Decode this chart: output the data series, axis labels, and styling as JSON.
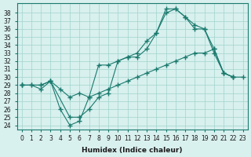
{
  "title": "",
  "xlabel": "Humidex (Indice chaleur)",
  "ylabel": "",
  "xlim": [
    -0.5,
    23.5
  ],
  "ylim": [
    23.5,
    39.2
  ],
  "xticks": [
    0,
    1,
    2,
    3,
    4,
    5,
    6,
    7,
    8,
    9,
    10,
    11,
    12,
    13,
    14,
    15,
    16,
    17,
    18,
    19,
    20,
    21,
    22,
    23
  ],
  "yticks": [
    24,
    25,
    26,
    27,
    28,
    29,
    30,
    31,
    32,
    33,
    34,
    35,
    36,
    37,
    38
  ],
  "line_color": "#1a7a6e",
  "bg_color": "#d8f0ee",
  "grid_color": "#a0d4cc",
  "line1_x": [
    0,
    1,
    2,
    3,
    4,
    5,
    6,
    7,
    8,
    9,
    10,
    11,
    12,
    13,
    14,
    15,
    16,
    17,
    18,
    19,
    20,
    21,
    22
  ],
  "line1_y": [
    29.0,
    29.0,
    28.5,
    29.5,
    26.0,
    24.0,
    24.5,
    27.5,
    31.5,
    31.5,
    32.0,
    32.5,
    33.0,
    34.5,
    35.5,
    38.0,
    38.5,
    37.5,
    36.5,
    36.0,
    33.5,
    30.5,
    30.0
  ],
  "line2_x": [
    0,
    2,
    3,
    5,
    6,
    7,
    8,
    9,
    10,
    11,
    12,
    13,
    14,
    15,
    16,
    17,
    18,
    19,
    20,
    21,
    22
  ],
  "line2_y": [
    29.0,
    29.0,
    29.5,
    25.0,
    25.0,
    26.0,
    27.5,
    28.0,
    32.0,
    32.5,
    32.5,
    33.5,
    35.5,
    38.5,
    38.5,
    37.5,
    36.0,
    36.0,
    33.0,
    30.5,
    30.0
  ],
  "line3_x": [
    0,
    1,
    2,
    3,
    4,
    5,
    6,
    7,
    8,
    9,
    10,
    11,
    12,
    13,
    14,
    15,
    16,
    17,
    18,
    19,
    20,
    21,
    22,
    23
  ],
  "line3_y": [
    29.0,
    29.0,
    29.0,
    29.5,
    28.5,
    27.5,
    28.0,
    27.5,
    28.0,
    28.5,
    29.0,
    29.5,
    30.0,
    30.5,
    31.0,
    31.5,
    32.0,
    32.5,
    33.0,
    33.0,
    33.5,
    30.5,
    30.0,
    30.0
  ]
}
